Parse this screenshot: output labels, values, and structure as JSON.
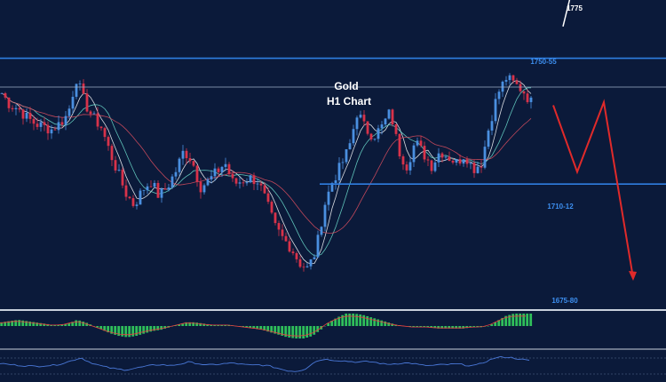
{
  "colors": {
    "background": "#0b1a3a",
    "bull_candle": "#4a8fe0",
    "bear_candle": "#d8324a",
    "level_line": "#2f7ee0",
    "minor_line": "#9fb0c8",
    "level_label": "#3d8ff0",
    "title": "#ffffff",
    "projection_down": "#e02a2a",
    "projection_up": "#ffffff",
    "macd_hist": "#2fbf5a",
    "macd_signal": "#e84040",
    "rsi_line": "#4a78d8"
  },
  "chart_data": {
    "type": "candlestick",
    "title": "Gold",
    "subtitle": "H1 Chart",
    "annotations": {
      "target_up": "1775",
      "resistance": "1750-55",
      "support": "1710-12",
      "target_down": "1675-80"
    },
    "levels": [
      {
        "name": "resistance",
        "value": 1752.5,
        "label": "1750-55"
      },
      {
        "name": "minor",
        "value": 1743
      },
      {
        "name": "support",
        "value": 1711,
        "label": "1710-12"
      },
      {
        "name": "target_down",
        "value": 1677.5,
        "label": "1675-80"
      }
    ],
    "price_range": [
      1675,
      1760
    ],
    "close_path": [
      1741,
      1737,
      1736,
      1733,
      1731,
      1730,
      1729,
      1731,
      1734,
      1746,
      1738,
      1733,
      1730,
      1722,
      1715,
      1708,
      1704,
      1709,
      1712,
      1707,
      1710,
      1715,
      1722,
      1719,
      1710,
      1712,
      1715,
      1718,
      1711,
      1712,
      1713,
      1712,
      1705,
      1697,
      1693,
      1690,
      1685,
      1683,
      1689,
      1704,
      1712,
      1717,
      1723,
      1735,
      1729,
      1727,
      1730,
      1735,
      1722,
      1717,
      1725,
      1721,
      1717,
      1722,
      1720,
      1718,
      1721,
      1716,
      1718,
      1731,
      1741,
      1746,
      1744,
      1742,
      1738
    ],
    "projection_down": [
      1737,
      1715,
      1738,
      1680
    ],
    "projection_up": [
      1763,
      1776
    ],
    "macd_histogram": [
      0.3,
      0.4,
      0.5,
      0.4,
      0.3,
      0.2,
      0.1,
      0.1,
      0.2,
      0.5,
      0.3,
      0.0,
      -0.3,
      -0.6,
      -0.8,
      -0.9,
      -0.8,
      -0.6,
      -0.4,
      -0.3,
      -0.1,
      0.1,
      0.3,
      0.3,
      0.2,
      0.1,
      0.1,
      0.1,
      0.0,
      -0.1,
      -0.2,
      -0.3,
      -0.5,
      -0.7,
      -0.9,
      -1.0,
      -1.0,
      -0.8,
      -0.3,
      0.3,
      0.7,
      1.0,
      1.0,
      0.9,
      0.7,
      0.5,
      0.3,
      0.1,
      0.0,
      -0.1,
      -0.1,
      -0.1,
      -0.2,
      -0.2,
      -0.2,
      -0.2,
      -0.1,
      -0.1,
      0.0,
      0.4,
      0.8,
      1.0,
      1.0,
      1.0
    ],
    "rsi_path": [
      55,
      52,
      50,
      48,
      47,
      49,
      50,
      55,
      62,
      70,
      58,
      50,
      44,
      40,
      38,
      42,
      46,
      50,
      52,
      49,
      53,
      58,
      55,
      50,
      52,
      54,
      56,
      52,
      50,
      51,
      48,
      42,
      36,
      34,
      40,
      58,
      66,
      64,
      62,
      60,
      58,
      60,
      57,
      52,
      54,
      56,
      55,
      50,
      49,
      51,
      52,
      53,
      50,
      49,
      58,
      68,
      72,
      70,
      66,
      62
    ],
    "grid": false,
    "legend": "none"
  }
}
